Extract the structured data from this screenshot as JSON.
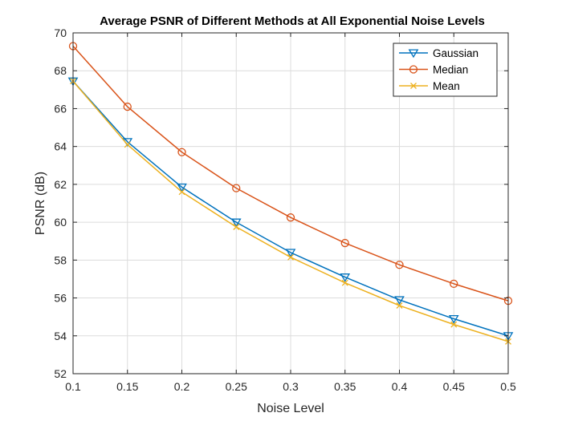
{
  "chart_data": {
    "type": "line",
    "title": "Average PSNR of Different Methods at All Exponential Noise Levels",
    "xlabel": "Noise Level",
    "ylabel": "PSNR (dB)",
    "x": [
      0.1,
      0.15,
      0.2,
      0.25,
      0.3,
      0.35,
      0.4,
      0.45,
      0.5
    ],
    "xticks": [
      "0.1",
      "0.15",
      "0.2",
      "0.25",
      "0.3",
      "0.35",
      "0.4",
      "0.45",
      "0.5"
    ],
    "yticks": [
      "52",
      "54",
      "56",
      "58",
      "60",
      "62",
      "64",
      "66",
      "68",
      "70"
    ],
    "xlim": [
      0.1,
      0.5
    ],
    "ylim": [
      52,
      70
    ],
    "grid": true,
    "legend_position": "top-right",
    "series": [
      {
        "name": "Gaussian",
        "color": "#0072BD",
        "marker": "triangle-down",
        "values": [
          67.45,
          64.25,
          61.85,
          60.0,
          58.4,
          57.1,
          55.9,
          54.9,
          54.0
        ]
      },
      {
        "name": "Median",
        "color": "#D95319",
        "marker": "circle",
        "values": [
          69.3,
          66.1,
          63.7,
          61.8,
          60.25,
          58.9,
          57.75,
          56.75,
          55.85
        ]
      },
      {
        "name": "Mean",
        "color": "#EDB120",
        "marker": "x",
        "values": [
          67.45,
          64.1,
          61.6,
          59.75,
          58.15,
          56.8,
          55.6,
          54.6,
          53.7
        ]
      }
    ]
  }
}
